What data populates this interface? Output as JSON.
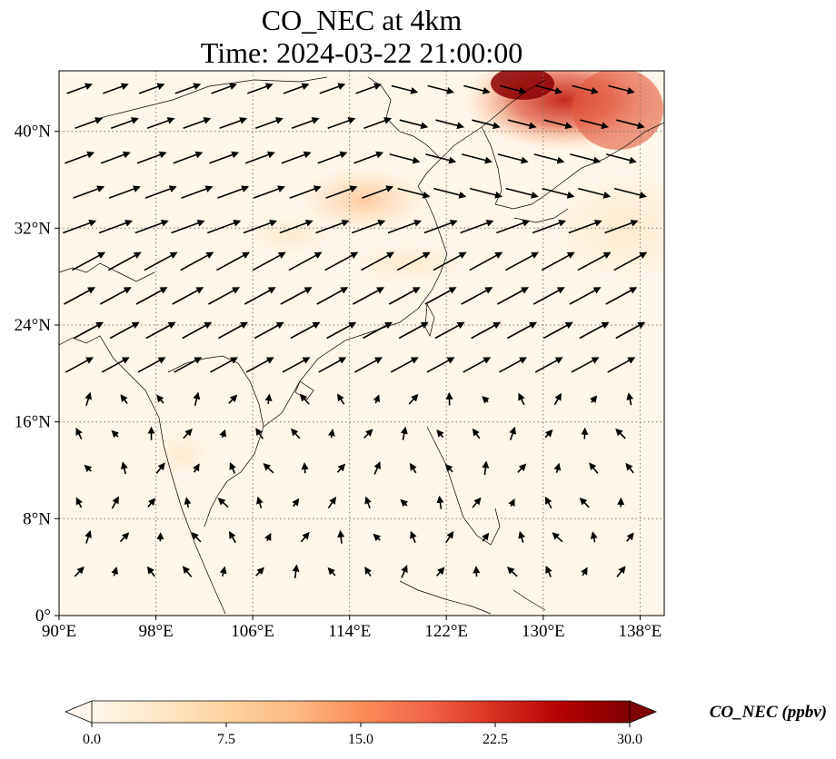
{
  "title": {
    "line1": "CO_NEC at 4km",
    "line2": "Time: 2024-03-22 21:00:00"
  },
  "map": {
    "lon_range": [
      90,
      140
    ],
    "lat_range": [
      0,
      45
    ],
    "lon_ticks": [
      "90°E",
      "98°E",
      "106°E",
      "114°E",
      "122°E",
      "130°E",
      "138°E"
    ],
    "lat_ticks": [
      "0°",
      "8°N",
      "16°N",
      "24°N",
      "32°N",
      "40°N"
    ],
    "gridlines": "dotted",
    "field_colormap": "OrRd",
    "overlay": "wind vectors"
  },
  "colorbar": {
    "label": "CO_NEC (ppbv)",
    "min": 0.0,
    "max": 30.0,
    "ticks": [
      "0.0",
      "7.5",
      "15.0",
      "22.5",
      "30.0"
    ],
    "extend": "both",
    "colors": [
      "#fff7ec",
      "#fee8c8",
      "#fdd49e",
      "#fdbb84",
      "#fc8d59",
      "#ef6548",
      "#d7301f",
      "#b30000",
      "#7f0000"
    ]
  }
}
